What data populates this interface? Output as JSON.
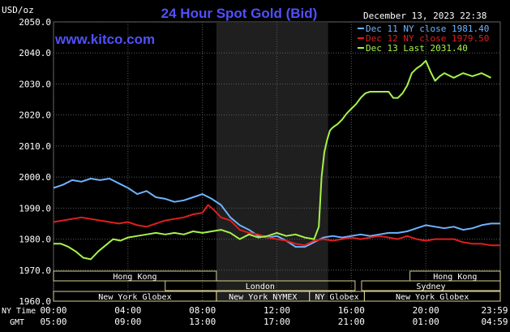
{
  "header": {
    "unit": "USD/oz",
    "title": "24 Hour Spot Gold (Bid)",
    "date": "December 13, 2023 22:38",
    "watermark": "www.kitco.com"
  },
  "colors": {
    "background": "#000000",
    "plot_area": "#000000",
    "grid": "#5a5a5a",
    "overnight_shade": "#1f1f1f",
    "title": "#5050ff",
    "text": "#ffffff",
    "session_box": "#d7cf92",
    "dec11": "#6fb3ff",
    "dec12": "#e01e1e",
    "dec13": "#a6f24a"
  },
  "legend": {
    "position": "top-right",
    "entries": [
      {
        "key": "dec11",
        "label": "Dec 11 NY close 1981.40"
      },
      {
        "key": "dec12",
        "label": "Dec 12 NY close 1979.50"
      },
      {
        "key": "dec13",
        "label": "Dec 13 Last 2031.40"
      }
    ]
  },
  "sessions": [
    {
      "label": "Hong Kong",
      "start": 0,
      "end": 8.75
    },
    {
      "label": "Hong Kong",
      "start": 19.15,
      "end": 24
    },
    {
      "label": "London",
      "start": 6,
      "end": 16.2
    },
    {
      "label": "Sydney",
      "start": 16.55,
      "end": 24
    },
    {
      "label": "New York Globex",
      "start": 0,
      "end": 8.75
    },
    {
      "label": "New York NYMEX",
      "start": 8.75,
      "end": 13.75
    },
    {
      "label": "NY Globex",
      "start": 13.75,
      "end": 16.7
    },
    {
      "label": "New York Globex",
      "start": 16.7,
      "end": 24
    }
  ],
  "axis_row_labels": {
    "ny": "NY Time",
    "gmt": "GMT"
  },
  "chart_data": {
    "type": "line",
    "title": "24 Hour Spot Gold (Bid)",
    "ylabel": "USD/oz",
    "ylim": [
      1960,
      2050
    ],
    "yticks": [
      1960,
      1970,
      1980,
      1990,
      2000,
      2010,
      2020,
      2030,
      2040,
      2050
    ],
    "ytick_labels": [
      "1960.0",
      "1970.0",
      "1980.0",
      "1990.0",
      "2000.0",
      "2010.0",
      "2020.0",
      "2030.0",
      "2040.0",
      "2050.0"
    ],
    "xlim": [
      0,
      24
    ],
    "xticks": [
      0,
      4,
      8,
      12,
      16,
      20,
      24
    ],
    "xtick_labels_ny": [
      "00:00",
      "04:00",
      "08:00",
      "12:00",
      "16:00",
      "20:00",
      "23:59"
    ],
    "xtick_labels_gmt": [
      "05:00",
      "09:00",
      "13:00",
      "17:00",
      "21:00",
      "01:00",
      "04:59"
    ],
    "shaded_region": [
      8.75,
      14.75
    ],
    "grid": true,
    "series": [
      {
        "name": "Dec 11 NY close 1981.40",
        "color": "#6fb3ff",
        "x": [
          0,
          0.5,
          1.0,
          1.5,
          2.0,
          2.5,
          3.0,
          3.5,
          4.0,
          4.5,
          5.0,
          5.5,
          6.0,
          6.5,
          7.0,
          7.5,
          8.0,
          8.5,
          9.0,
          9.5,
          10.0,
          10.5,
          11.0,
          11.5,
          12.0,
          12.5,
          13.0,
          13.5,
          14.0,
          14.5,
          15.0,
          15.5,
          16.0,
          16.5,
          17.0,
          17.5,
          18.0,
          18.5,
          19.0,
          19.5,
          20.0,
          20.5,
          21.0,
          21.5,
          22.0,
          22.5,
          23.0,
          23.5,
          24.0
        ],
        "values": [
          1996.5,
          1997.5,
          1999.0,
          1998.5,
          1999.5,
          1999.0,
          1999.5,
          1998.0,
          1996.5,
          1994.5,
          1995.5,
          1993.5,
          1993.0,
          1992.0,
          1992.5,
          1993.5,
          1994.5,
          1993.0,
          1991.0,
          1987.0,
          1984.5,
          1983.0,
          1981.0,
          1980.5,
          1981.0,
          1979.5,
          1977.5,
          1977.5,
          1979.0,
          1980.5,
          1981.0,
          1980.5,
          1981.0,
          1981.5,
          1981.0,
          1981.5,
          1982.0,
          1982.0,
          1982.5,
          1983.5,
          1984.5,
          1984.0,
          1983.5,
          1984.0,
          1983.0,
          1983.5,
          1984.5,
          1985.0,
          1985.0
        ]
      },
      {
        "name": "Dec 12 NY close 1979.50",
        "color": "#e01e1e",
        "x": [
          0,
          0.5,
          1.0,
          1.5,
          2.0,
          2.5,
          3.0,
          3.5,
          4.0,
          4.5,
          5.0,
          5.5,
          6.0,
          6.5,
          7.0,
          7.5,
          8.0,
          8.3,
          8.6,
          9.0,
          9.5,
          10.0,
          10.5,
          11.0,
          11.5,
          12.0,
          12.5,
          13.0,
          13.5,
          14.0,
          14.5,
          15.0,
          15.5,
          16.0,
          16.5,
          17.0,
          17.5,
          18.0,
          18.5,
          19.0,
          19.5,
          20.0,
          20.5,
          21.0,
          21.5,
          22.0,
          22.5,
          23.0,
          23.5,
          24.0
        ],
        "values": [
          1985.5,
          1986.0,
          1986.5,
          1987.0,
          1986.5,
          1986.0,
          1985.5,
          1985.0,
          1985.5,
          1984.5,
          1984.0,
          1985.0,
          1986.0,
          1986.5,
          1987.0,
          1988.0,
          1988.5,
          1991.0,
          1989.5,
          1987.0,
          1986.0,
          1983.0,
          1982.0,
          1981.5,
          1980.5,
          1980.0,
          1979.5,
          1978.5,
          1978.0,
          1979.5,
          1980.0,
          1979.5,
          1980.0,
          1980.5,
          1980.0,
          1980.5,
          1981.0,
          1980.5,
          1980.0,
          1981.0,
          1980.0,
          1979.5,
          1980.0,
          1980.0,
          1980.0,
          1979.0,
          1978.5,
          1978.5,
          1978.0,
          1978.0
        ]
      },
      {
        "name": "Dec 13 Last 2031.40",
        "color": "#a6f24a",
        "x": [
          0,
          0.4,
          0.8,
          1.2,
          1.6,
          2.0,
          2.4,
          2.8,
          3.2,
          3.6,
          4.0,
          4.5,
          5.0,
          5.5,
          6.0,
          6.5,
          7.0,
          7.5,
          8.0,
          8.5,
          9.0,
          9.5,
          10.0,
          10.5,
          11.0,
          11.5,
          12.0,
          12.5,
          13.0,
          13.5,
          14.0,
          14.25,
          14.4,
          14.55,
          14.7,
          14.85,
          15.0,
          15.25,
          15.5,
          15.75,
          16.0,
          16.25,
          16.5,
          16.75,
          17.0,
          17.25,
          17.5,
          17.75,
          18.0,
          18.25,
          18.5,
          18.75,
          19.0,
          19.25,
          19.5,
          19.75,
          20.0,
          20.25,
          20.5,
          20.75,
          21.0,
          21.5,
          22.0,
          22.5,
          23.0,
          23.5
        ],
        "values": [
          1978.5,
          1978.5,
          1977.5,
          1976.0,
          1974.0,
          1973.5,
          1976.0,
          1978.0,
          1980.0,
          1979.5,
          1980.5,
          1981.0,
          1981.5,
          1982.0,
          1981.5,
          1982.0,
          1981.5,
          1982.5,
          1982.0,
          1982.5,
          1983.0,
          1982.0,
          1980.0,
          1981.5,
          1980.5,
          1981.0,
          1982.0,
          1981.0,
          1981.5,
          1980.5,
          1980.0,
          1984.0,
          2000.0,
          2008.0,
          2012.0,
          2015.0,
          2016.0,
          2017.0,
          2018.5,
          2020.5,
          2022.0,
          2023.5,
          2025.5,
          2027.0,
          2027.5,
          2027.5,
          2027.5,
          2027.5,
          2027.5,
          2025.5,
          2025.5,
          2027.0,
          2029.5,
          2033.5,
          2035.0,
          2036.0,
          2037.5,
          2034.0,
          2031.0,
          2032.5,
          2033.5,
          2032.0,
          2033.5,
          2032.5,
          2033.5,
          2032.0
        ]
      }
    ]
  }
}
